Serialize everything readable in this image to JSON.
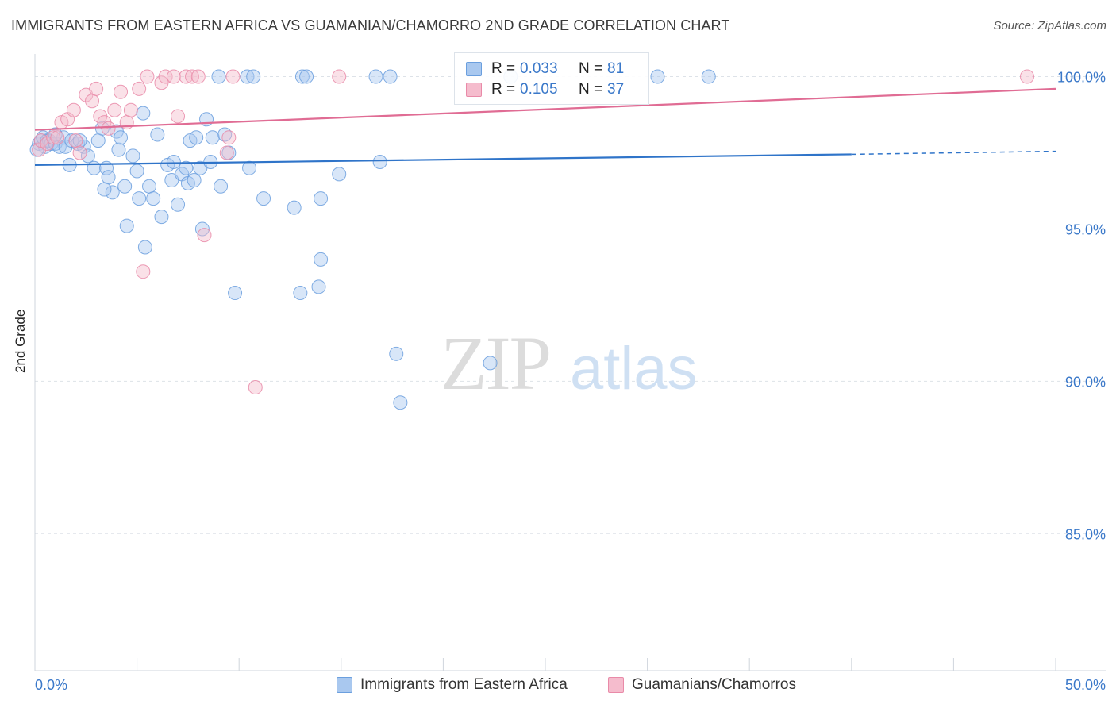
{
  "title": "IMMIGRANTS FROM EASTERN AFRICA VS GUAMANIAN/CHAMORRO 2ND GRADE CORRELATION CHART",
  "source": "Source: ZipAtlas.com",
  "watermark": {
    "zip": "ZIP",
    "atlas": "atlas"
  },
  "stats": [
    {
      "r_label": "R =",
      "r_value": "0.033",
      "n_label": "N =",
      "n_value": "81",
      "color": "#a9c8ef",
      "border": "#6b9fde"
    },
    {
      "r_label": "R =",
      "r_value": "0.105",
      "n_label": "N =",
      "n_value": "37",
      "color": "#f5bccd",
      "border": "#e98aa8"
    }
  ],
  "legend": [
    {
      "label": "Immigrants from Eastern Africa",
      "color": "#a9c8ef",
      "border": "#6b9fde"
    },
    {
      "label": "Guamanians/Chamorros",
      "color": "#f5bccd",
      "border": "#e98aa8"
    }
  ],
  "chart_data": {
    "type": "scatter",
    "title": "IMMIGRANTS FROM EASTERN AFRICA VS GUAMANIAN/CHAMORRO 2ND GRADE CORRELATION CHART",
    "xlabel": "",
    "ylabel": "2nd Grade",
    "xlim": [
      0,
      50
    ],
    "ylim": [
      80.5,
      100.9
    ],
    "x_tick_labels": [
      "0.0%",
      "50.0%"
    ],
    "y_ticks": [
      85,
      90,
      95,
      100
    ],
    "y_tick_labels": [
      "85.0%",
      "90.0%",
      "95.0%",
      "100.0%"
    ],
    "grid": true,
    "legend_position": "bottom",
    "series": [
      {
        "name": "Immigrants from Eastern Africa",
        "color": "#6b9fde",
        "fill": "#a9c8ef",
        "trend": {
          "x": [
            0,
            40
          ],
          "y": [
            97.1,
            97.45
          ],
          "dashed_to": [
            50,
            97.55
          ]
        },
        "points": [
          [
            0.2,
            97.8
          ],
          [
            0.3,
            97.9
          ],
          [
            0.4,
            98.0
          ],
          [
            0.5,
            97.7
          ],
          [
            0.6,
            97.9
          ],
          [
            0.7,
            97.9
          ],
          [
            0.8,
            97.8
          ],
          [
            1.0,
            97.8
          ],
          [
            1.2,
            97.7
          ],
          [
            1.4,
            98.0
          ],
          [
            1.5,
            97.7
          ],
          [
            1.8,
            97.9
          ],
          [
            2.1,
            97.8
          ],
          [
            2.4,
            97.7
          ],
          [
            2.6,
            97.4
          ],
          [
            1.7,
            97.1
          ],
          [
            2.9,
            97.0
          ],
          [
            3.1,
            97.9
          ],
          [
            3.3,
            98.3
          ],
          [
            3.5,
            97.0
          ],
          [
            3.6,
            96.7
          ],
          [
            3.8,
            96.2
          ],
          [
            3.4,
            96.3
          ],
          [
            4.0,
            98.2
          ],
          [
            4.1,
            97.6
          ],
          [
            4.2,
            98.0
          ],
          [
            4.4,
            96.4
          ],
          [
            4.5,
            95.1
          ],
          [
            4.8,
            97.4
          ],
          [
            5.0,
            96.9
          ],
          [
            5.1,
            96.0
          ],
          [
            5.3,
            98.8
          ],
          [
            5.4,
            94.4
          ],
          [
            5.6,
            96.4
          ],
          [
            5.8,
            96.0
          ],
          [
            6.0,
            98.1
          ],
          [
            6.2,
            95.4
          ],
          [
            6.5,
            97.1
          ],
          [
            6.7,
            96.6
          ],
          [
            6.8,
            97.2
          ],
          [
            7.0,
            95.8
          ],
          [
            7.2,
            96.8
          ],
          [
            7.4,
            97.0
          ],
          [
            7.5,
            96.5
          ],
          [
            7.6,
            97.9
          ],
          [
            7.8,
            96.6
          ],
          [
            7.9,
            98.0
          ],
          [
            8.1,
            97.0
          ],
          [
            8.2,
            95.0
          ],
          [
            8.4,
            98.6
          ],
          [
            8.6,
            97.2
          ],
          [
            8.7,
            98.0
          ],
          [
            9.1,
            96.4
          ],
          [
            9.3,
            98.1
          ],
          [
            9.5,
            97.5
          ],
          [
            9.8,
            92.9
          ],
          [
            10.5,
            97.0
          ],
          [
            11.2,
            96.0
          ],
          [
            12.7,
            95.7
          ],
          [
            13.0,
            92.9
          ],
          [
            13.9,
            93.1
          ],
          [
            14.0,
            96.0
          ],
          [
            14.0,
            94.0
          ],
          [
            14.9,
            96.8
          ],
          [
            16.9,
            97.2
          ],
          [
            17.7,
            90.9
          ],
          [
            17.9,
            89.3
          ],
          [
            22.3,
            90.6
          ],
          [
            9.0,
            100.0
          ],
          [
            10.4,
            100.0
          ],
          [
            10.7,
            100.0
          ],
          [
            13.1,
            100.0
          ],
          [
            13.3,
            100.0
          ],
          [
            16.7,
            100.0
          ],
          [
            17.4,
            100.0
          ],
          [
            23.3,
            100.0
          ],
          [
            30.5,
            100.0
          ],
          [
            33.0,
            100.0
          ],
          [
            1.0,
            98.1
          ],
          [
            0.1,
            97.6
          ],
          [
            2.2,
            97.9
          ]
        ]
      },
      {
        "name": "Guamanians/Chamorros",
        "color": "#e98aa8",
        "fill": "#f5bccd",
        "trend": {
          "x": [
            0,
            50
          ],
          "y": [
            98.25,
            99.6
          ]
        },
        "points": [
          [
            0.2,
            97.6
          ],
          [
            0.3,
            97.9
          ],
          [
            0.6,
            97.8
          ],
          [
            0.9,
            98.0
          ],
          [
            1.1,
            98.0
          ],
          [
            1.3,
            98.5
          ],
          [
            1.6,
            98.6
          ],
          [
            1.9,
            98.9
          ],
          [
            2.0,
            97.9
          ],
          [
            2.2,
            97.5
          ],
          [
            2.5,
            99.4
          ],
          [
            2.8,
            99.2
          ],
          [
            3.0,
            99.6
          ],
          [
            3.2,
            98.7
          ],
          [
            3.4,
            98.5
          ],
          [
            3.6,
            98.3
          ],
          [
            3.9,
            98.9
          ],
          [
            4.2,
            99.5
          ],
          [
            4.5,
            98.5
          ],
          [
            4.7,
            98.9
          ],
          [
            5.1,
            99.6
          ],
          [
            5.3,
            93.6
          ],
          [
            5.5,
            100.0
          ],
          [
            6.2,
            99.8
          ],
          [
            6.4,
            100.0
          ],
          [
            6.8,
            100.0
          ],
          [
            7.0,
            98.7
          ],
          [
            7.4,
            100.0
          ],
          [
            7.7,
            100.0
          ],
          [
            8.0,
            100.0
          ],
          [
            8.3,
            94.8
          ],
          [
            9.4,
            97.5
          ],
          [
            9.5,
            98.0
          ],
          [
            9.7,
            100.0
          ],
          [
            10.8,
            89.8
          ],
          [
            14.9,
            100.0
          ],
          [
            48.6,
            100.0
          ]
        ]
      }
    ]
  }
}
